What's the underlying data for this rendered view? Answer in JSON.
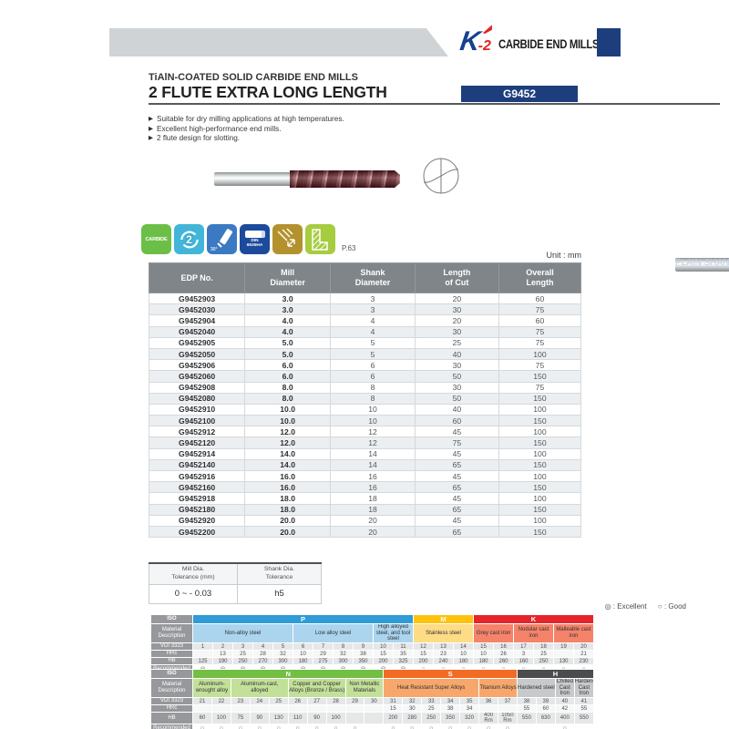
{
  "brand": {
    "logo_k": "K",
    "logo_2": "-2",
    "logo_text": "CARBIDE END MILLS"
  },
  "header": {
    "subtitle": "TiAlN-COATED SOLID CARBIDE END MILLS",
    "title": "2 FLUTE EXTRA LONG LENGTH",
    "model": "G9452",
    "shank_type": "PLAIN SHANK"
  },
  "features_bullet": "▶",
  "features": [
    "Suitable for dry milling applications at high temperatures.",
    "Excellent high-performance end mills.",
    "2 flute design for slotting."
  ],
  "icons": [
    {
      "name": "carbide-icon",
      "label": "CARBIDE"
    },
    {
      "name": "two-flutes-icon",
      "label": "2"
    },
    {
      "name": "helix-30-icon",
      "label": "30°"
    },
    {
      "name": "din-6535ha-shank-icon",
      "label": "DIN\n6535HA"
    },
    {
      "name": "corner-milling-icon",
      "label": ""
    },
    {
      "name": "slotting-icon",
      "label": ""
    }
  ],
  "icons_page_ref": "P.63",
  "unit_label": "Unit : mm",
  "size_table": {
    "headers": [
      "EDP No.",
      "Mill\nDiameter",
      "Shank\nDiameter",
      "Length\nof Cut",
      "Overall\nLength"
    ],
    "rows": [
      [
        "G9452903",
        "3.0",
        "3",
        "20",
        "60"
      ],
      [
        "G9452030",
        "3.0",
        "3",
        "30",
        "75"
      ],
      [
        "G9452904",
        "4.0",
        "4",
        "20",
        "60"
      ],
      [
        "G9452040",
        "4.0",
        "4",
        "30",
        "75"
      ],
      [
        "G9452905",
        "5.0",
        "5",
        "25",
        "75"
      ],
      [
        "G9452050",
        "5.0",
        "5",
        "40",
        "100"
      ],
      [
        "G9452906",
        "6.0",
        "6",
        "30",
        "75"
      ],
      [
        "G9452060",
        "6.0",
        "6",
        "50",
        "150"
      ],
      [
        "G9452908",
        "8.0",
        "8",
        "30",
        "75"
      ],
      [
        "G9452080",
        "8.0",
        "8",
        "50",
        "150"
      ],
      [
        "G9452910",
        "10.0",
        "10",
        "40",
        "100"
      ],
      [
        "G9452100",
        "10.0",
        "10",
        "60",
        "150"
      ],
      [
        "G9452912",
        "12.0",
        "12",
        "45",
        "100"
      ],
      [
        "G9452120",
        "12.0",
        "12",
        "75",
        "150"
      ],
      [
        "G9452914",
        "14.0",
        "14",
        "45",
        "100"
      ],
      [
        "G9452140",
        "14.0",
        "14",
        "65",
        "150"
      ],
      [
        "G9452916",
        "16.0",
        "16",
        "45",
        "100"
      ],
      [
        "G9452160",
        "16.0",
        "16",
        "65",
        "150"
      ],
      [
        "G9452918",
        "18.0",
        "18",
        "45",
        "100"
      ],
      [
        "G9452180",
        "18.0",
        "18",
        "65",
        "150"
      ],
      [
        "G9452920",
        "20.0",
        "20",
        "45",
        "100"
      ],
      [
        "G9452200",
        "20.0",
        "20",
        "65",
        "150"
      ]
    ]
  },
  "tolerance_table": {
    "headers": [
      "Mill Dia.\nTolerance (mm)",
      "Shank Dia.\nTolerance"
    ],
    "values": [
      "0 ~ - 0.03",
      "h5"
    ]
  },
  "legend": {
    "excellent": "◎ : Excellent",
    "good": "○ : Good"
  },
  "material_row_labels": [
    "ISO",
    "Material\nDescription",
    "VDI 3323",
    "HRc",
    "HB",
    "Recommended"
  ],
  "material_tables": [
    {
      "groups": [
        {
          "iso": "P",
          "color": "#2f9bd8",
          "sub_color": "#abd4ee",
          "span": 11,
          "materials": [
            {
              "label": "Non-alloy steel",
              "span": 5
            },
            {
              "label": "Low alloy steel",
              "span": 4
            },
            {
              "label": "High alloyed steel, and tool steel",
              "span": 2
            }
          ]
        },
        {
          "iso": "M",
          "color": "#ffc20d",
          "sub_color": "#fddc85",
          "span": 3,
          "materials": [
            {
              "label": "Stainless steel",
              "span": 3
            }
          ]
        },
        {
          "iso": "K",
          "color": "#e6252b",
          "sub_color": "#f5836a",
          "span": 6,
          "materials": [
            {
              "label": "Grey cast iron",
              "span": 2
            },
            {
              "label": "Nodular cast iron",
              "span": 2
            },
            {
              "label": "Malleable cast iron",
              "span": 2
            }
          ]
        }
      ],
      "vdi": [
        "1",
        "2",
        "3",
        "4",
        "5",
        "6",
        "7",
        "8",
        "9",
        "10",
        "11",
        "12",
        "13",
        "14",
        "15",
        "16",
        "17",
        "18",
        "19",
        "20"
      ],
      "hrc": [
        "",
        "13",
        "25",
        "28",
        "32",
        "10",
        "29",
        "32",
        "38",
        "15",
        "35",
        "15",
        "23",
        "10",
        "10",
        "26",
        "3",
        "25",
        "",
        "21"
      ],
      "hb": [
        "125",
        "190",
        "250",
        "270",
        "300",
        "180",
        "275",
        "300",
        "350",
        "200",
        "325",
        "200",
        "240",
        "180",
        "180",
        "260",
        "160",
        "250",
        "130",
        "230"
      ],
      "recommended": [
        "◎",
        "◎",
        "◎",
        "◎",
        "◎",
        "◎",
        "◎",
        "◎",
        "◎",
        "◎",
        "◎",
        "○",
        "○",
        "○",
        "○",
        "○",
        "○",
        "○",
        "○",
        "○"
      ]
    },
    {
      "groups": [
        {
          "iso": "N",
          "color": "#72bf44",
          "sub_color": "#c3e099",
          "span": 10,
          "materials": [
            {
              "label": "Aluminum-wrought alloy",
              "span": 2
            },
            {
              "label": "Aluminum-cast, alloyed",
              "span": 3
            },
            {
              "label": "Copper and Copper Alloys (Bronze / Brass)",
              "span": 3
            },
            {
              "label": "Non Metallic Materials",
              "span": 2
            }
          ]
        },
        {
          "iso": "S",
          "color": "#f26b24",
          "sub_color": "#f8a76c",
          "span": 7,
          "materials": [
            {
              "label": "Heat Resistant Super Alloys",
              "span": 5
            },
            {
              "label": "Titanium Alloys",
              "span": 2
            }
          ]
        },
        {
          "iso": "H",
          "color": "#4b4c4e",
          "sub_color": "#c8c9cb",
          "span": 4,
          "materials": [
            {
              "label": "Hardened steel",
              "span": 2
            },
            {
              "label": "Chilled Cast Iron",
              "span": 1
            },
            {
              "label": "Hardened Cast Iron",
              "span": 1
            }
          ]
        }
      ],
      "vdi": [
        "21",
        "22",
        "23",
        "24",
        "25",
        "26",
        "27",
        "28",
        "29",
        "30",
        "31",
        "32",
        "33",
        "34",
        "35",
        "36",
        "37",
        "38",
        "39",
        "40",
        "41"
      ],
      "hrc": [
        "",
        "",
        "",
        "",
        "",
        "",
        "",
        "",
        "",
        "",
        "15",
        "30",
        "25",
        "38",
        "34",
        "",
        "",
        "55",
        "60",
        "42",
        "55"
      ],
      "hb": [
        "60",
        "100",
        "75",
        "90",
        "130",
        "110",
        "90",
        "100",
        "",
        "",
        "200",
        "280",
        "250",
        "350",
        "320",
        "400 Rm",
        "1050 Rm",
        "550",
        "630",
        "400",
        "550"
      ],
      "recommended": [
        "○",
        "○",
        "○",
        "○",
        "○",
        "○",
        "○",
        "○",
        "○",
        "",
        "○",
        "○",
        "○",
        "○",
        "○",
        "○",
        "○",
        "",
        "",
        "○",
        ""
      ]
    }
  ]
}
